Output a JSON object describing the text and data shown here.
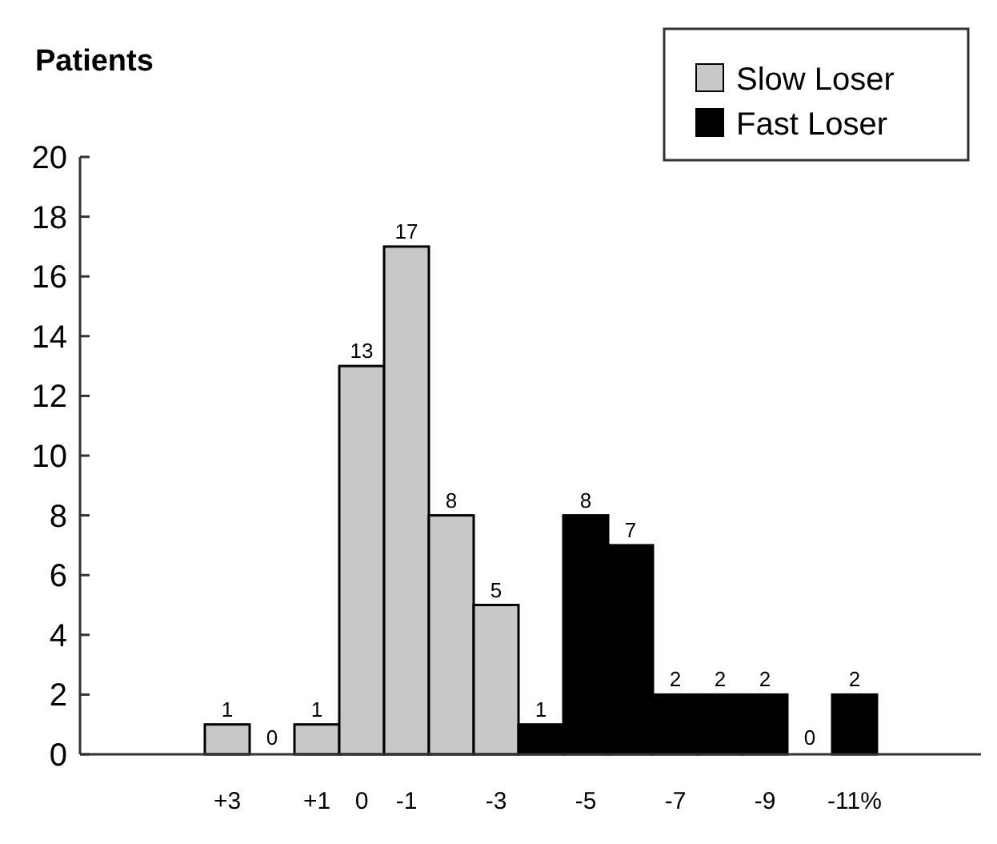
{
  "chart_data": {
    "type": "bar",
    "ylabel": "Patients",
    "categories": [
      "+3",
      null,
      "+1",
      "0",
      "-1",
      null,
      "-3",
      null,
      "-5",
      null,
      "-7",
      null,
      "-9",
      null,
      "-11%"
    ],
    "series": [
      {
        "name": "Slow Loser",
        "color": "#c8c8c8",
        "values": [
          1,
          0,
          1,
          13,
          17,
          8,
          5,
          null,
          null,
          null,
          null,
          null,
          null,
          null,
          null
        ]
      },
      {
        "name": "Fast Loser",
        "color": "#000000",
        "values": [
          null,
          null,
          null,
          null,
          null,
          null,
          null,
          1,
          8,
          7,
          2,
          2,
          2,
          0,
          2
        ]
      }
    ],
    "ylim": [
      0,
      20
    ],
    "yticks": [
      0,
      2,
      4,
      6,
      8,
      10,
      12,
      14,
      16,
      18,
      20
    ],
    "data_labels": true,
    "legend": "top right",
    "grid": false
  }
}
